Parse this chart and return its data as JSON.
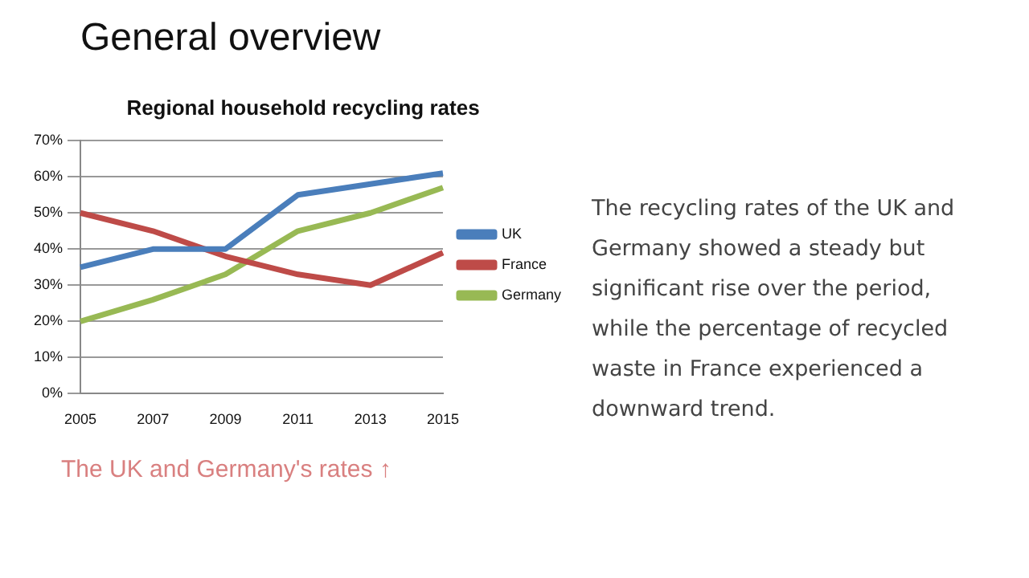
{
  "chart_data": {
    "type": "line",
    "title": "Regional household recycling rates",
    "categories": [
      "2005",
      "2007",
      "2009",
      "2011",
      "2013",
      "2015"
    ],
    "series": [
      {
        "name": "UK",
        "color": "#4a7ebb",
        "values": [
          35,
          40,
          40,
          55,
          58,
          61
        ]
      },
      {
        "name": "France",
        "color": "#be4b48",
        "values": [
          50,
          45,
          38,
          33,
          30,
          39
        ]
      },
      {
        "name": "Germany",
        "color": "#98b954",
        "values": [
          20,
          26,
          33,
          45,
          50,
          57
        ]
      }
    ],
    "ylim": [
      0,
      70
    ],
    "yticks": [
      {
        "value": 0,
        "label": "0%"
      },
      {
        "value": 10,
        "label": "10%"
      },
      {
        "value": 20,
        "label": "20%"
      },
      {
        "value": 30,
        "label": "30%"
      },
      {
        "value": 40,
        "label": "40%"
      },
      {
        "value": 50,
        "label": "50%"
      },
      {
        "value": 60,
        "label": "60%"
      },
      {
        "value": 70,
        "label": "70%"
      }
    ],
    "grid": "y",
    "legend": "right",
    "marker": "none",
    "line_style": "solid",
    "annotations": [
      "General overview",
      "The recycling rates of the UK and Germany showed a steady but significant rise over the period, while the percentage of recycled waste in France experienced a downward trend.",
      "The UK and Germany's rates ↑"
    ]
  }
}
